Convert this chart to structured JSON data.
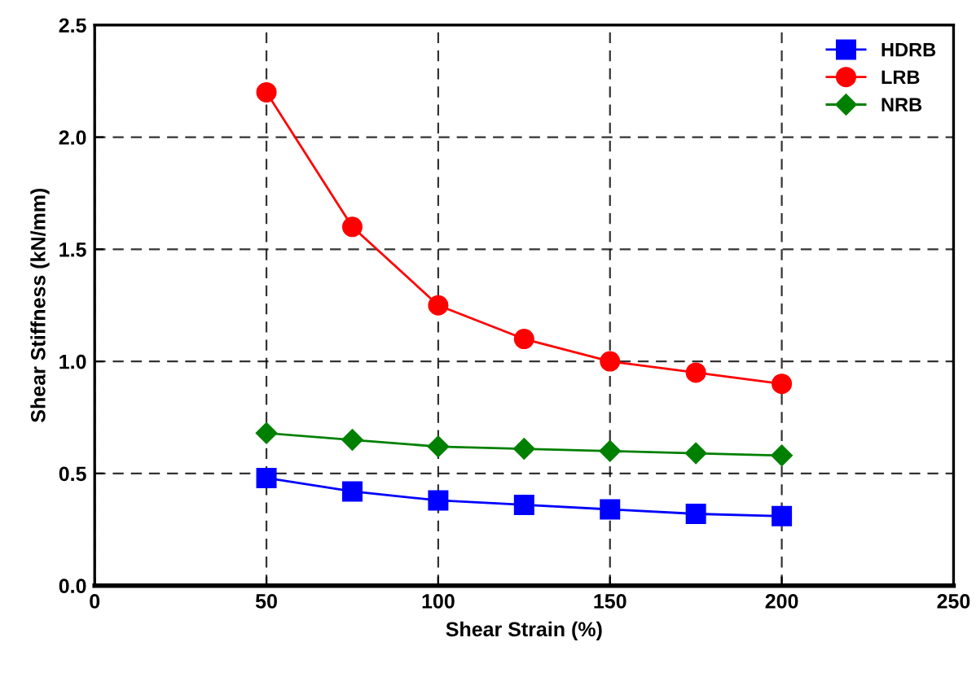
{
  "chart_data": {
    "type": "line",
    "xlabel": "Shear Strain (%)",
    "ylabel": "Shear Stiffness (kN/mm)",
    "x": [
      50,
      75,
      100,
      125,
      150,
      175,
      200
    ],
    "series": [
      {
        "name": "HDRB",
        "color": "#0000ff",
        "marker": "square",
        "values": [
          0.48,
          0.42,
          0.38,
          0.36,
          0.34,
          0.32,
          0.31
        ]
      },
      {
        "name": "LRB",
        "color": "#ff0000",
        "marker": "circle",
        "values": [
          2.2,
          1.6,
          1.25,
          1.1,
          1.0,
          0.95,
          0.9
        ]
      },
      {
        "name": "NRB",
        "color": "#008000",
        "marker": "diamond",
        "values": [
          0.68,
          0.65,
          0.62,
          0.61,
          0.6,
          0.59,
          0.58
        ]
      }
    ],
    "xlim": [
      0,
      250
    ],
    "xticks": [
      0,
      50,
      100,
      150,
      200,
      250
    ],
    "ylim": [
      0,
      2.5
    ],
    "yticks": [
      {
        "value": 0,
        "label": "0.0"
      },
      {
        "value": 0.5,
        "label": "0.5"
      },
      {
        "value": 1,
        "label": "1.0"
      },
      {
        "value": 1.5,
        "label": "1.5"
      },
      {
        "value": 2,
        "label": "2.0"
      },
      {
        "value": 2.5,
        "label": "2.5"
      }
    ],
    "grid": true,
    "legend": "top right",
    "line_style": "solid"
  }
}
